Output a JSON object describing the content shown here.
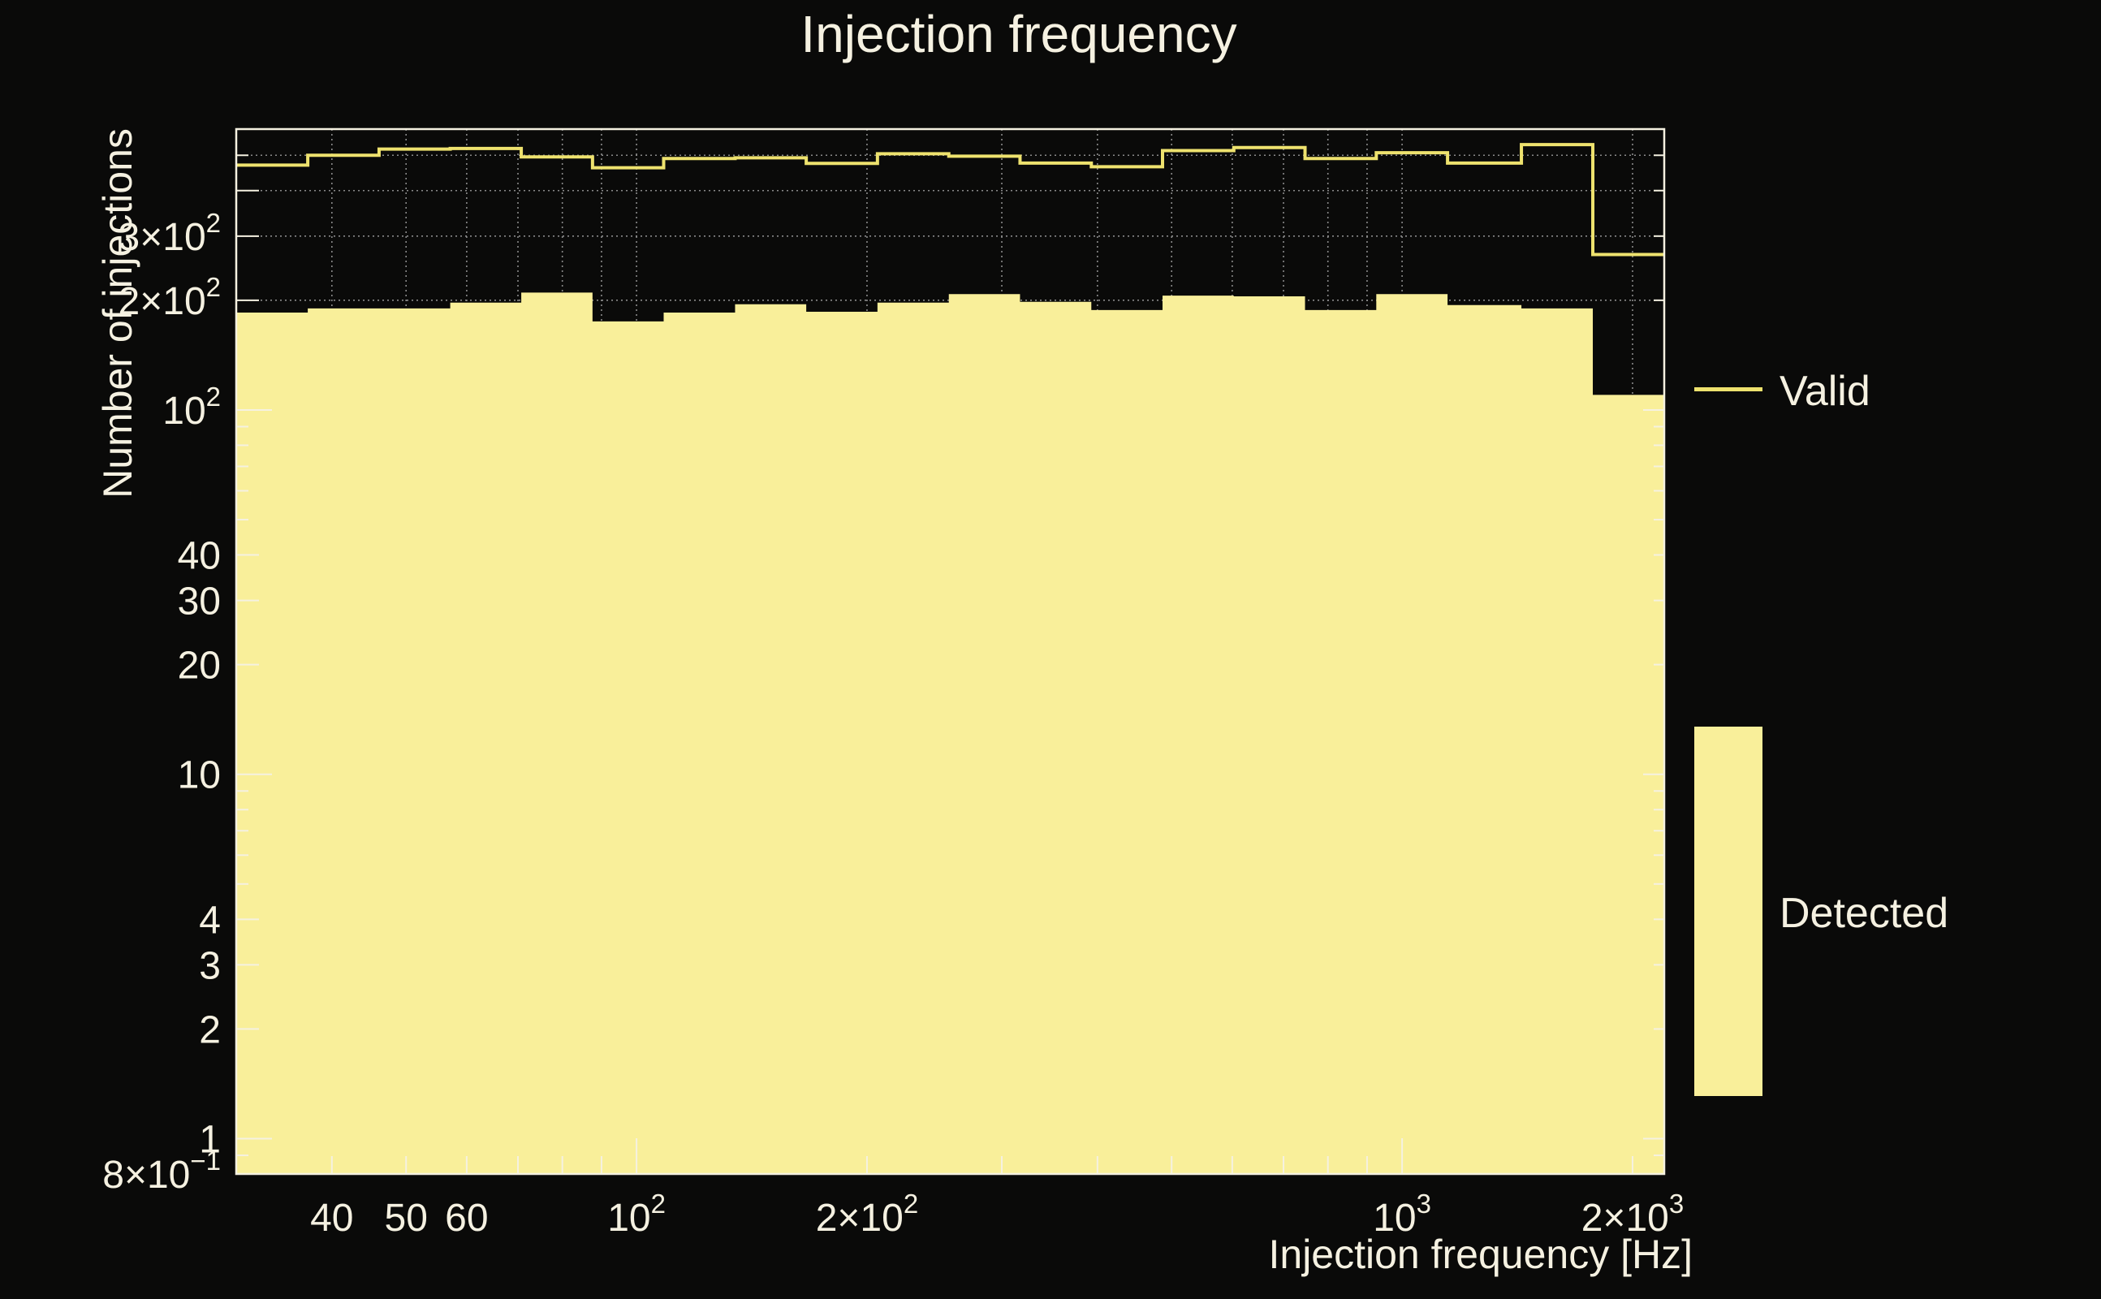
{
  "figure": {
    "background_color": "#0a0a09",
    "text_color": "#f5f1e1",
    "grid_color": "#8a8a8a",
    "frame_color": "#f5f1e1"
  },
  "legend": {
    "valid_label": "Valid",
    "detected_label": "Detected",
    "valid_swatch": "line",
    "detected_swatch": "filled-box"
  },
  "chart_data": {
    "type": "bar",
    "subtype": "log-log step histogram with filled histogram",
    "title": "Injection frequency",
    "xlabel": "Injection frequency [Hz]",
    "ylabel": "Number of injections",
    "xscale": "log",
    "yscale": "log",
    "xlim": [
      30,
      2200
    ],
    "ylim": [
      0.8,
      590
    ],
    "grid": "dotted minor log gridlines",
    "legend_position": "right, outside plot",
    "bin_edges": [
      30,
      37.2,
      46.1,
      57.1,
      70.7,
      87.6,
      108.5,
      134.5,
      166.6,
      206.4,
      255.8,
      316.9,
      392.7,
      486.5,
      602.8,
      746.8,
      925.3,
      1146.5,
      1431.7,
      1774.7,
      2200
    ],
    "series": [
      {
        "name": "Valid",
        "style": "step-line",
        "color": "#eee26e",
        "line_width": 4,
        "values": [
          470,
          500,
          520,
          522,
          495,
          462,
          490,
          492,
          475,
          505,
          497,
          476,
          465,
          515,
          525,
          490,
          508,
          476,
          535,
          267
        ]
      },
      {
        "name": "Detected",
        "style": "filled",
        "color": "#f9ef9a",
        "values": [
          185,
          190,
          190,
          197,
          210,
          175,
          185,
          195,
          186,
          197,
          208,
          198,
          188,
          206,
          205,
          188,
          208,
          194,
          190,
          110
        ]
      }
    ],
    "grid_x_values": [
      40,
      50,
      60,
      70,
      80,
      90,
      100,
      200,
      300,
      400,
      500,
      600,
      700,
      800,
      900,
      1000,
      2000
    ],
    "grid_y_values": [
      0.9,
      1,
      2,
      3,
      4,
      5,
      6,
      7,
      8,
      9,
      10,
      20,
      30,
      40,
      50,
      60,
      70,
      80,
      90,
      100,
      200,
      300,
      400,
      500
    ],
    "x_tick_labels": [
      {
        "v": 40,
        "m": "40",
        "e": ""
      },
      {
        "v": 50,
        "m": "50",
        "e": ""
      },
      {
        "v": 60,
        "m": "60",
        "e": ""
      },
      {
        "v": 100,
        "m": "10",
        "e": "2"
      },
      {
        "v": 200,
        "m": "2×10",
        "e": "2"
      },
      {
        "v": 1000,
        "m": "10",
        "e": "3"
      },
      {
        "v": 2000,
        "m": "2×10",
        "e": "3"
      }
    ],
    "y_tick_labels": [
      {
        "v": 300,
        "m": "3×10",
        "e": "2"
      },
      {
        "v": 200,
        "m": "2×10",
        "e": "2"
      },
      {
        "v": 100,
        "m": "10",
        "e": "2"
      },
      {
        "v": 40,
        "m": "40",
        "e": ""
      },
      {
        "v": 30,
        "m": "30",
        "e": ""
      },
      {
        "v": 20,
        "m": "20",
        "e": ""
      },
      {
        "v": 10,
        "m": "10",
        "e": ""
      },
      {
        "v": 4,
        "m": "4",
        "e": ""
      },
      {
        "v": 3,
        "m": "3",
        "e": ""
      },
      {
        "v": 2,
        "m": "2",
        "e": ""
      },
      {
        "v": 1,
        "m": "1",
        "e": ""
      },
      {
        "v": 0.8,
        "m": "8×10",
        "e": "−1"
      }
    ]
  }
}
